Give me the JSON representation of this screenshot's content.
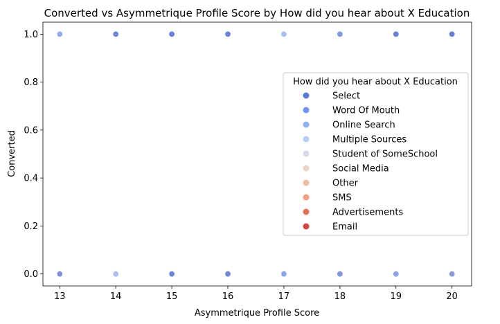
{
  "chart_data": {
    "type": "scatter",
    "title": "Converted vs Asymmetrique Profile Score by How did you hear about X Education",
    "xlabel": "Asymmetrique Profile Score",
    "ylabel": "Converted",
    "xlim": [
      12.7,
      20.35
    ],
    "ylim": [
      -0.05,
      1.05
    ],
    "x_ticks": [
      "13",
      "14",
      "15",
      "16",
      "17",
      "18",
      "19",
      "20"
    ],
    "y_ticks": [
      "0.0",
      "0.2",
      "0.4",
      "0.6",
      "0.8",
      "1.0"
    ],
    "grid": false,
    "legend": {
      "title": "How did you hear about X Education",
      "placement": "right",
      "entries": [
        {
          "name": "Select",
          "color": "#5a78d8"
        },
        {
          "name": "Word Of Mouth",
          "color": "#7296f0"
        },
        {
          "name": "Online Search",
          "color": "#8eb2f6"
        },
        {
          "name": "Multiple Sources",
          "color": "#b8cff5"
        },
        {
          "name": "Student of SomeSchool",
          "color": "#d2dbe8"
        },
        {
          "name": "Social Media",
          "color": "#ebd3c5"
        },
        {
          "name": "Other",
          "color": "#efbca3"
        },
        {
          "name": "SMS",
          "color": "#f19e82"
        },
        {
          "name": "Advertisements",
          "color": "#e4725b"
        },
        {
          "name": "Email",
          "color": "#d1463e"
        }
      ]
    },
    "points": [
      {
        "x": 13,
        "y": 1,
        "color": "#92aef0"
      },
      {
        "x": 14,
        "y": 1,
        "color": "#6f86dc"
      },
      {
        "x": 15,
        "y": 1,
        "color": "#6a80da"
      },
      {
        "x": 16,
        "y": 1,
        "color": "#6b82d9"
      },
      {
        "x": 17,
        "y": 1,
        "color": "#a9bff0"
      },
      {
        "x": 18,
        "y": 1,
        "color": "#7f9be6"
      },
      {
        "x": 19,
        "y": 1,
        "color": "#6a80da"
      },
      {
        "x": 20,
        "y": 1,
        "color": "#6a80da"
      },
      {
        "x": 13,
        "y": 0,
        "color": "#7d92e0"
      },
      {
        "x": 14,
        "y": 0,
        "color": "#a9bff0"
      },
      {
        "x": 15,
        "y": 0,
        "color": "#6e84da"
      },
      {
        "x": 16,
        "y": 0,
        "color": "#7386d6"
      },
      {
        "x": 17,
        "y": 0,
        "color": "#8aa2ea"
      },
      {
        "x": 18,
        "y": 0,
        "color": "#8194dc"
      },
      {
        "x": 19,
        "y": 0,
        "color": "#8aa2ea"
      },
      {
        "x": 20,
        "y": 0,
        "color": "#8d98d8"
      }
    ]
  }
}
